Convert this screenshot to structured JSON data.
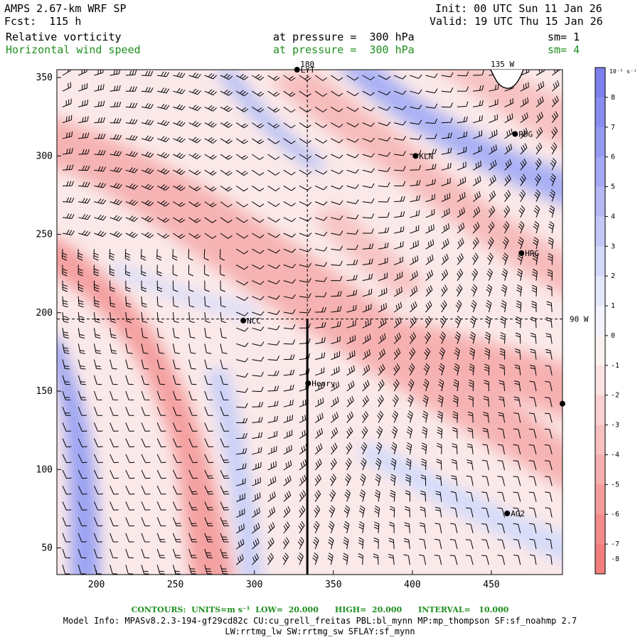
{
  "header": {
    "title": "AMPS 2.67-km WRF SP",
    "forecast": "Fcst:  115 h",
    "init": "Init: 00 UTC Sun 11 Jan 26",
    "valid": "Valid: 19 UTC Thu 15 Jan 26",
    "field1_name": "Relative vorticity",
    "field1_level": "at pressure =  300 hPa",
    "field1_sm": "sm= 1",
    "field2_name": "Horizontal wind speed",
    "field2_level": "at pressure =  300 hPa",
    "field2_sm": "sm= 4"
  },
  "map": {
    "x_ticks": [
      200,
      250,
      300,
      350,
      400,
      450
    ],
    "y_ticks": [
      50,
      100,
      150,
      200,
      250,
      300,
      350
    ],
    "x_range": [
      175,
      495
    ],
    "y_range": [
      33,
      355
    ],
    "lon_labels": [
      {
        "text": "180",
        "x": 333.5,
        "y": 355
      },
      {
        "text": "135 W",
        "x": 457,
        "y": 355
      },
      {
        "text": "90 W",
        "x": 495,
        "y": 196
      }
    ],
    "meridian_x": 333.5,
    "parallel_y": 196,
    "stations": [
      {
        "name": "LYT",
        "x": 327,
        "y": 355
      },
      {
        "name": "RDG",
        "x": 465,
        "y": 314
      },
      {
        "name": "KLN",
        "x": 402,
        "y": 300
      },
      {
        "name": "HRG",
        "x": 469,
        "y": 238
      },
      {
        "name": "NCC",
        "x": 293,
        "y": 195
      },
      {
        "name": "Henry",
        "x": 334,
        "y": 155
      },
      {
        "name": "AG2",
        "x": 460,
        "y": 72
      },
      {
        "name": "",
        "x": 495,
        "y": 142
      }
    ],
    "colors": {
      "strong_pos": "#7e80ee",
      "weak_pos": "#ccd5f6",
      "strong_neg": "#f27e7e",
      "weak_neg": "#f8c9c9",
      "line": "#000000"
    }
  },
  "colorbar": {
    "unit_label": "10⁻⁵ s⁻¹",
    "labels": [
      "8",
      "7",
      "6",
      "5",
      "4",
      "3",
      "2",
      "1",
      "0",
      "-1",
      "-2",
      "-3",
      "-4",
      "-5",
      "-6",
      "-7",
      "-8"
    ],
    "colors": [
      "#7e80ee",
      "#8a8cf0",
      "#979af1",
      "#a5a8f3",
      "#b4b8f5",
      "#c3c9f7",
      "#d3d9f9",
      "#e3e8fb",
      "#f3f4fd",
      "#fdf2f2",
      "#fbe2e2",
      "#f9d1d1",
      "#f8c0c0",
      "#f6aeae",
      "#f59c9c",
      "#f38b8b",
      "#f27e7e"
    ]
  },
  "footer": {
    "contours": "CONTOURS:  UNITS=m s⁻¹  LOW=  20.000      HIGH=  20.000      INTERVAL=   10.000",
    "model_info": "Model Info: MPASv8.2.3-194-gf29cd82c CU:cu_grell_freitas PBL:bl_mynn MP:mp_thompson SF:sf_noahmp 2.7",
    "model_info2": "LW:rrtmg_lw SW:rrtmg_sw SFLAY:sf_mynn"
  }
}
